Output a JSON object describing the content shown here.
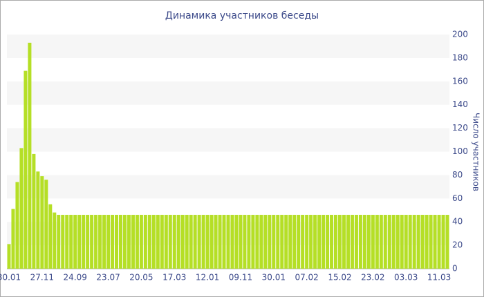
{
  "chart_data": {
    "type": "bar",
    "title": "Динамика участников беседы",
    "y_label": "Число участников",
    "categories": [
      "30.01",
      null,
      null,
      null,
      null,
      null,
      null,
      null,
      "27.11",
      null,
      null,
      null,
      null,
      null,
      null,
      null,
      "24.09",
      null,
      null,
      null,
      null,
      null,
      null,
      null,
      "23.07",
      null,
      null,
      null,
      null,
      null,
      null,
      null,
      "20.05",
      null,
      null,
      null,
      null,
      null,
      null,
      null,
      "17.03",
      null,
      null,
      null,
      null,
      null,
      null,
      null,
      "12.01",
      null,
      null,
      null,
      null,
      null,
      null,
      null,
      "09.11",
      null,
      null,
      null,
      null,
      null,
      null,
      null,
      "30.01",
      null,
      null,
      null,
      null,
      null,
      null,
      null,
      "07.02",
      null,
      null,
      null,
      null,
      null,
      null,
      null,
      "15.02",
      null,
      null,
      null,
      null,
      null,
      null,
      null,
      "23.02",
      null,
      null,
      null,
      null,
      null,
      null,
      null,
      "03.03",
      null,
      null,
      null,
      null,
      null,
      null,
      null,
      "11.03",
      null,
      null
    ],
    "values": [
      21,
      51,
      74,
      103,
      169,
      193,
      98,
      83,
      79,
      76,
      55,
      48,
      46,
      46,
      46,
      46,
      46,
      46,
      46,
      46,
      46,
      46,
      46,
      46,
      46,
      46,
      46,
      46,
      46,
      46,
      46,
      46,
      46,
      46,
      46,
      46,
      46,
      46,
      46,
      46,
      46,
      46,
      46,
      46,
      46,
      46,
      46,
      46,
      46,
      46,
      46,
      46,
      46,
      46,
      46,
      46,
      46,
      46,
      46,
      46,
      46,
      46,
      46,
      46,
      46,
      46,
      46,
      46,
      46,
      46,
      46,
      46,
      46,
      46,
      46,
      46,
      46,
      46,
      46,
      46,
      46,
      46,
      46,
      46,
      46,
      46,
      46,
      46,
      46,
      46,
      46,
      46,
      46,
      46,
      46,
      46,
      46,
      46,
      46,
      46,
      46,
      46,
      46,
      46,
      46,
      46,
      46
    ],
    "color": "#b5df26",
    "ylim": [
      0,
      200
    ],
    "yticks": [
      0,
      20,
      40,
      60,
      80,
      100,
      120,
      140,
      160,
      180,
      200
    ],
    "grid": true,
    "y_axis_side": "right"
  }
}
